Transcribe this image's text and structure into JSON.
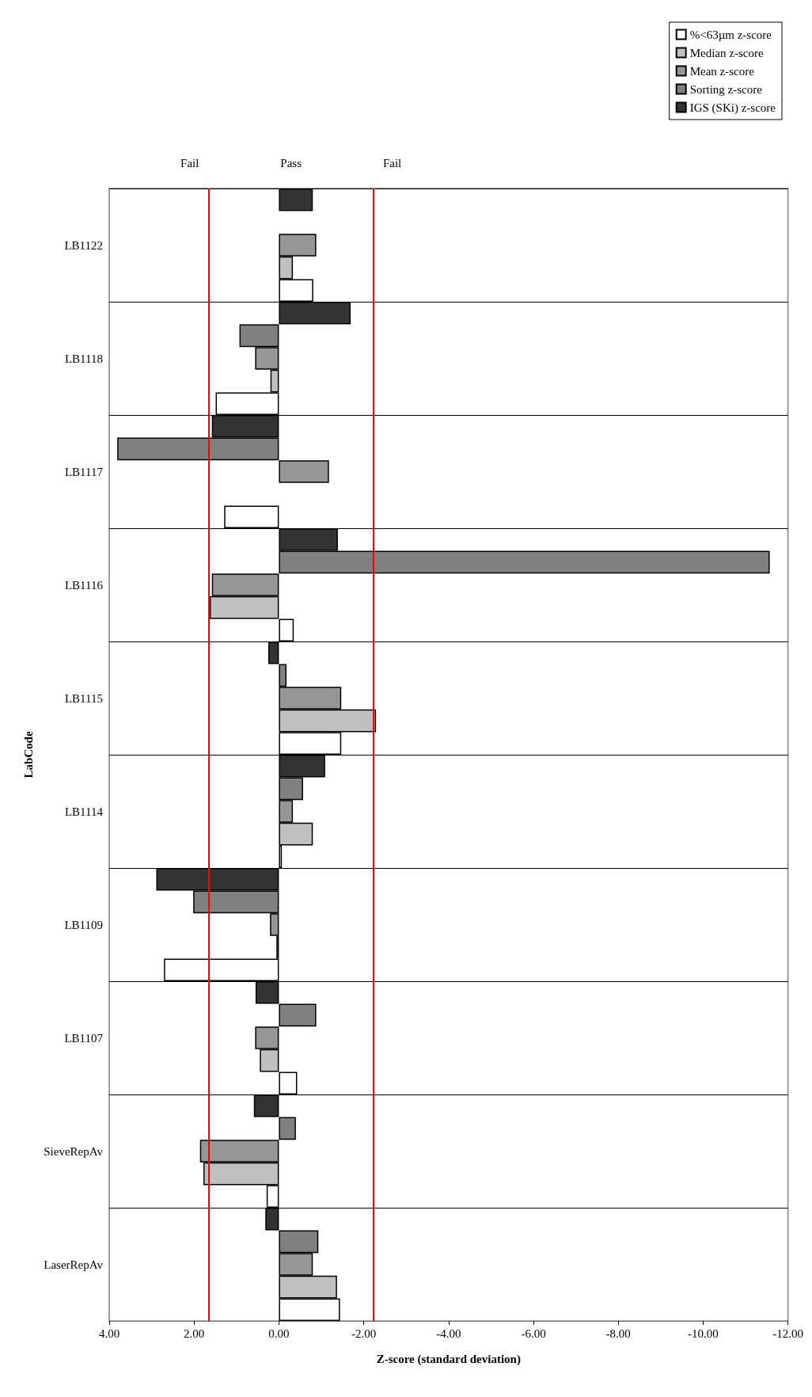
{
  "chart_data": {
    "type": "bar",
    "orientation": "horizontal",
    "xlabel": "Z-score (standard deviation)",
    "ylabel": "LabCode",
    "categories": [
      "LB1122",
      "LB1118",
      "LB1117",
      "LB1116",
      "LB1115",
      "LB1114",
      "LB1109",
      "LB1107",
      "SieveRepAv",
      "LaserRepAv"
    ],
    "series": [
      {
        "name": "IGS (SKi) z-score",
        "color": "#333333",
        "values": [
          -0.8,
          -1.69,
          1.58,
          -1.39,
          0.25,
          -1.09,
          2.89,
          0.55,
          0.59,
          0.32
        ]
      },
      {
        "name": "Sorting z-score",
        "color": "#808080",
        "values": [
          null,
          0.93,
          3.81,
          -11.57,
          -0.18,
          -0.57,
          2.02,
          -0.88,
          -0.4,
          -0.93
        ]
      },
      {
        "name": "Mean z-score",
        "color": "#969696",
        "values": [
          -0.88,
          0.56,
          -1.18,
          1.58,
          -1.47,
          -0.33,
          0.21,
          0.56,
          1.86,
          -0.8
        ]
      },
      {
        "name": "Median z-score",
        "color": "#c0c0c0",
        "values": [
          -0.33,
          0.2,
          null,
          1.63,
          -2.29,
          -0.8,
          0.06,
          0.45,
          1.78,
          -1.37
        ]
      },
      {
        "name": "%<63µm z-score",
        "color": "#ffffff",
        "values": [
          -0.81,
          1.49,
          1.29,
          -0.35,
          -1.47,
          -0.07,
          2.71,
          -0.43,
          0.29,
          -1.44
        ]
      }
    ],
    "xlim": [
      4,
      -12
    ],
    "xticks": [
      {
        "value": 4,
        "label": "4.00"
      },
      {
        "value": 2,
        "label": "2.00"
      },
      {
        "value": 0,
        "label": "0.00"
      },
      {
        "value": -2,
        "label": "-2.00"
      },
      {
        "value": -4,
        "label": "-4.00"
      },
      {
        "value": -6,
        "label": "-6.00"
      },
      {
        "value": -8,
        "label": "-8.00"
      },
      {
        "value": -10,
        "label": "-10.00"
      },
      {
        "value": -12,
        "label": "-12.00"
      }
    ],
    "ref_lines": [
      {
        "axis": "x",
        "value": 1.66,
        "color": "#ff0000"
      },
      {
        "axis": "x",
        "value": -2.23,
        "color": "#ff0000"
      }
    ],
    "annotations": [
      "Fail",
      "Pass",
      "Fail"
    ],
    "grid": "y",
    "legend": "top right"
  }
}
